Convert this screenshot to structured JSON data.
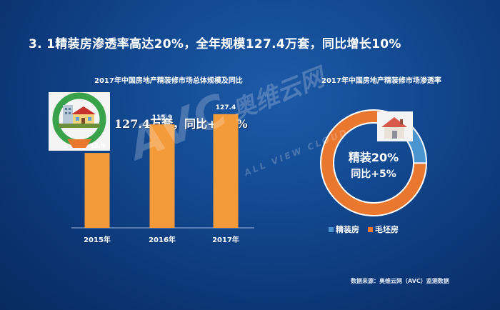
{
  "slide": {
    "title": "3. 1精装房渗透率高达20%，全年规模127.4万套，同比增长10%",
    "source": "数据来源：奥维云网（AVC）监测数据",
    "watermark": {
      "brand": "AVC",
      "name_zh": "奥维云网",
      "name_en": "ALL VIEW CLOUD"
    }
  },
  "colors": {
    "bar": "#f39a3a",
    "fine": "#4a95d0",
    "rough": "#e9772e"
  },
  "chart_data": [
    {
      "type": "bar",
      "title": "2017年中国房地产精装修市场总体规模及同比",
      "categories": [
        "2015年",
        "2016年",
        "2017年"
      ],
      "values": [
        83.9,
        115.9,
        127.4
      ],
      "ylim": [
        0,
        160
      ],
      "grid": false,
      "annotation": "127.4万套，同比+9.9%"
    },
    {
      "type": "pie",
      "title": "2017年中国房地产精装修市场渗透率",
      "labels": [
        "精装房",
        "毛坯房"
      ],
      "values": [
        20,
        80
      ],
      "center_text": "精装20%",
      "center_subtext": "同比+5%",
      "legend": "bottom"
    }
  ]
}
